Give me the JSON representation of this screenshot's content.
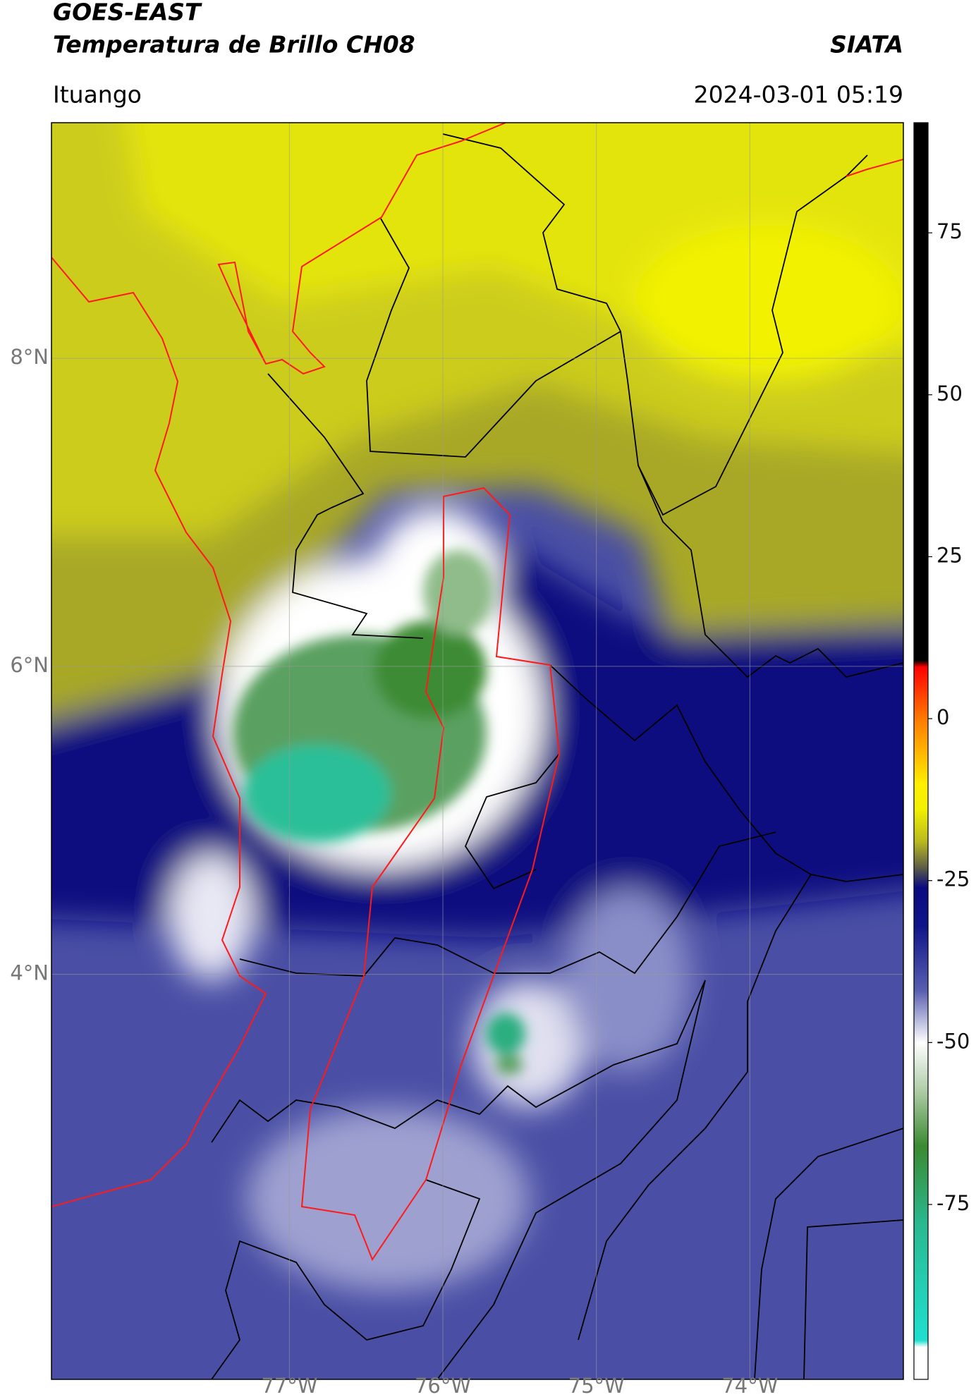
{
  "header": {
    "title": "GOES-EAST",
    "subtitle": "Temperatura de Brillo CH08",
    "source": "SIATA",
    "location": "Ituango",
    "datetime": "2024-03-01 05:19"
  },
  "map": {
    "xlim": [
      -78.55,
      -73.0
    ],
    "ylim": [
      1.37,
      9.53
    ],
    "xticks": [
      {
        "value": -77,
        "label": "77°W"
      },
      {
        "value": -76,
        "label": "76°W"
      },
      {
        "value": -75,
        "label": "75°W"
      },
      {
        "value": -74,
        "label": "74°W"
      }
    ],
    "yticks": [
      {
        "value": 8,
        "label": "8°N"
      },
      {
        "value": 6,
        "label": "6°N"
      },
      {
        "value": 4,
        "label": "4°N"
      }
    ],
    "grid": true,
    "colorbar": {
      "lim": [
        -102,
        92
      ],
      "ticks": [
        75,
        50,
        25,
        0,
        -25,
        -50,
        -75
      ],
      "stops": [
        {
          "value": 92,
          "color": "#000000"
        },
        {
          "value": 9,
          "color": "#000000"
        },
        {
          "value": 8,
          "color": "#ff0000"
        },
        {
          "value": 0,
          "color": "#ff7a00"
        },
        {
          "value": -10,
          "color": "#ffee00"
        },
        {
          "value": -14,
          "color": "#f2f000"
        },
        {
          "value": -19,
          "color": "#b8b820"
        },
        {
          "value": -23,
          "color": "#5c5c48"
        },
        {
          "value": -26,
          "color": "#0a0a80"
        },
        {
          "value": -32,
          "color": "#10148a"
        },
        {
          "value": -42,
          "color": "#5a5fb0"
        },
        {
          "value": -50,
          "color": "#ffffff"
        },
        {
          "value": -58,
          "color": "#a8c8a0"
        },
        {
          "value": -66,
          "color": "#3a8a30"
        },
        {
          "value": -78,
          "color": "#2ab890"
        },
        {
          "value": -96,
          "color": "#20e0d0"
        },
        {
          "value": -97,
          "color": "#ffffff"
        },
        {
          "value": -102,
          "color": "#ffffff"
        }
      ]
    }
  }
}
